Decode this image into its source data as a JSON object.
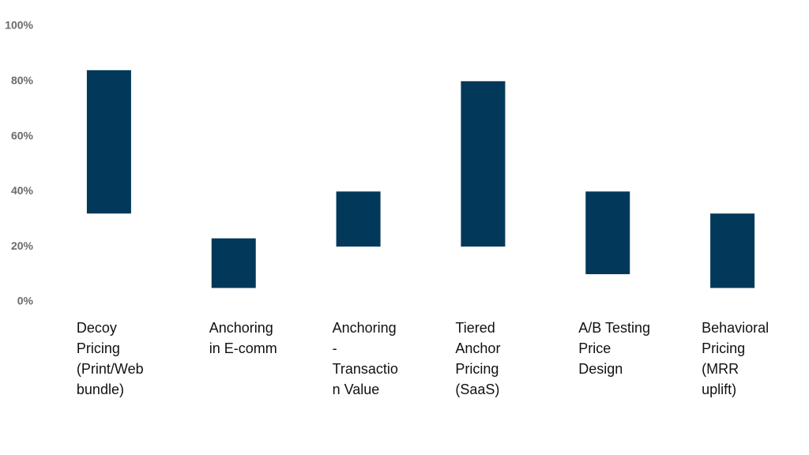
{
  "chart_data": {
    "type": "range_bar",
    "categories": [
      [
        "Decoy",
        "Pricing",
        "(Print/Web",
        "bundle)"
      ],
      [
        "Anchoring",
        "in E-comm"
      ],
      [
        "Anchoring",
        "-",
        "Transactio",
        "n Value"
      ],
      [
        "Tiered",
        "Anchor",
        "Pricing",
        "(SaaS)"
      ],
      [
        "A/B Testing",
        "Price",
        "Design"
      ],
      [
        "Behavioral",
        "Pricing",
        "(MRR",
        "uplift)"
      ]
    ],
    "low": [
      32,
      5,
      20,
      20,
      10,
      5
    ],
    "high": [
      84,
      23,
      40,
      80,
      40,
      32
    ],
    "color": "#023859",
    "ylim": [
      0,
      100
    ],
    "yticks": [
      {
        "value": 0,
        "label": "0%"
      },
      {
        "value": 20,
        "label": "20%"
      },
      {
        "value": 40,
        "label": "40%"
      },
      {
        "value": 60,
        "label": "60%"
      },
      {
        "value": 80,
        "label": "80%"
      },
      {
        "value": 100,
        "label": "100%"
      }
    ],
    "grid": false
  }
}
